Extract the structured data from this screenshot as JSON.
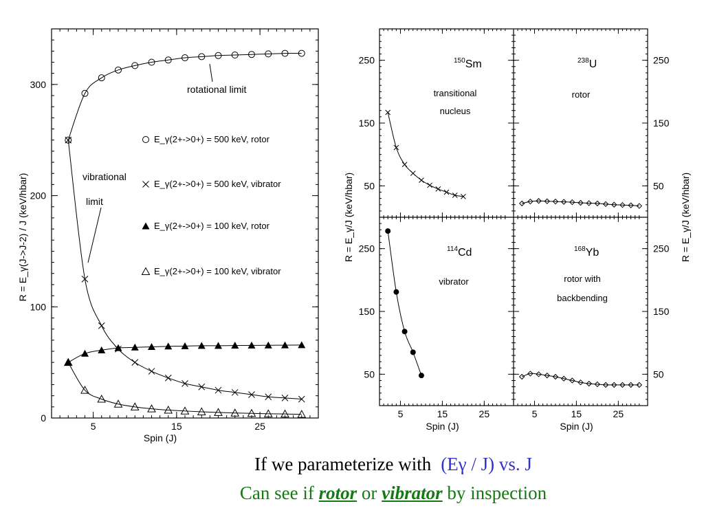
{
  "chart_data": [
    {
      "type": "line",
      "panel": "left",
      "xlabel": "Spin (J)",
      "ylabel": "R = E_γ(J->J-2) / J (keV/hbar)",
      "xlim": [
        0,
        32
      ],
      "ylim": [
        0,
        350
      ],
      "xticks": [
        5,
        15,
        25
      ],
      "yticks": [
        0,
        100,
        200,
        300
      ],
      "annotations": [
        "rotational limit",
        "vibrational",
        "limit"
      ],
      "legend": [
        {
          "marker": "circle-open",
          "text": "E_γ(2+->0+) = 500 keV, rotor"
        },
        {
          "marker": "cross",
          "text": "E_γ(2+->0+) = 500 keV, vibrator"
        },
        {
          "marker": "triangle-filled",
          "text": "E_γ(2+->0+) = 100 keV, rotor"
        },
        {
          "marker": "triangle-open",
          "text": "E_γ(2+->0+) = 100 keV, vibrator"
        }
      ],
      "x": [
        2,
        4,
        6,
        8,
        10,
        12,
        14,
        16,
        18,
        20,
        22,
        24,
        26,
        28,
        30
      ],
      "series": [
        {
          "name": "E_γ(2+->0+) = 500 keV, rotor",
          "marker": "circle-open",
          "values": [
            250,
            292,
            306,
            313,
            317,
            320,
            322,
            324,
            325,
            326,
            326.5,
            327,
            327.5,
            328,
            328
          ]
        },
        {
          "name": "E_γ(2+->0+) = 500 keV, vibrator",
          "marker": "cross",
          "values": [
            250,
            125,
            83,
            62,
            50,
            42,
            36,
            31,
            28,
            25,
            23,
            21,
            19,
            18,
            17
          ]
        },
        {
          "name": "E_γ(2+->0+) = 100 keV, rotor",
          "marker": "triangle-filled",
          "values": [
            50,
            58,
            61,
            63,
            63.5,
            64,
            64.5,
            64.7,
            65,
            65,
            65.2,
            65.3,
            65.4,
            65.5,
            65.6
          ]
        },
        {
          "name": "E_γ(2+->0+) = 100 keV, vibrator",
          "marker": "triangle-open",
          "values": [
            50,
            25,
            17,
            12.5,
            10,
            8.3,
            7.1,
            6.3,
            5.6,
            5,
            4.5,
            4.2,
            3.8,
            3.6,
            3.3
          ]
        }
      ]
    },
    {
      "type": "line",
      "panel": "top-left",
      "label_sup": "150",
      "label_main": "Sm",
      "desc": [
        "transitional",
        "nucleus"
      ],
      "xlim": [
        0,
        32
      ],
      "ylim": [
        0,
        300
      ],
      "yticks": [
        50,
        150,
        250
      ],
      "series": [
        {
          "marker": "cross",
          "x": [
            2,
            4,
            6,
            8,
            10,
            12,
            14,
            16,
            18,
            20
          ],
          "values": [
            167,
            111,
            84,
            70,
            59,
            51,
            45,
            40,
            35,
            33
          ]
        }
      ]
    },
    {
      "type": "line",
      "panel": "top-right",
      "label_sup": "238",
      "label_main": "U",
      "desc": [
        "rotor"
      ],
      "xlim": [
        0,
        32
      ],
      "ylim": [
        0,
        300
      ],
      "yticks": [
        50,
        150,
        250
      ],
      "ylabel": "R = E_γ/J (keV/hbar)",
      "series": [
        {
          "marker": "diamond-open",
          "x": [
            2,
            4,
            6,
            8,
            10,
            12,
            14,
            16,
            18,
            20,
            22,
            24,
            26,
            28,
            30
          ],
          "values": [
            22,
            25,
            26,
            25.5,
            25,
            24.5,
            24,
            23,
            22.5,
            22,
            21,
            20,
            19.5,
            19,
            18
          ]
        }
      ]
    },
    {
      "type": "line",
      "panel": "bottom-left",
      "label_sup": "114",
      "label_main": "Cd",
      "desc": [
        "vibrator"
      ],
      "xlabel": "Spin (J)",
      "xlim": [
        0,
        32
      ],
      "ylim": [
        0,
        300
      ],
      "yticks": [
        50,
        150,
        250
      ],
      "xticks": [
        5,
        15,
        25
      ],
      "series": [
        {
          "marker": "circle-filled",
          "x": [
            2,
            4,
            6,
            8,
            10
          ],
          "values": [
            278,
            181,
            118,
            85,
            48
          ]
        }
      ]
    },
    {
      "type": "line",
      "panel": "bottom-right",
      "label_sup": "168",
      "label_main": "Yb",
      "desc": [
        "rotor with",
        "backbending"
      ],
      "xlabel": "Spin (J)",
      "xlim": [
        0,
        32
      ],
      "ylim": [
        0,
        300
      ],
      "yticks": [
        50,
        150,
        250
      ],
      "xticks": [
        5,
        15,
        25
      ],
      "series": [
        {
          "marker": "diamond-open",
          "x": [
            2,
            4,
            6,
            8,
            10,
            12,
            14,
            16,
            18,
            20,
            22,
            24,
            26,
            28,
            30
          ],
          "values": [
            46,
            51,
            50,
            48,
            46,
            43,
            40,
            37,
            35,
            34,
            33,
            33,
            33,
            33,
            33
          ]
        }
      ]
    }
  ],
  "shared_ylabel_left": "R = E_γ/J (keV/hbar)",
  "caption": {
    "line1_prefix": "If we  parameterize with",
    "line1_highlight": "(Eγ / J)  vs. J",
    "line2_a": "Can see if ",
    "line2_rotor": "rotor",
    "line2_b": " or ",
    "line2_vibrator": "vibrator",
    "line2_c": " by inspection"
  },
  "colors": {
    "blue": "#3333cc",
    "green": "#137a13"
  }
}
